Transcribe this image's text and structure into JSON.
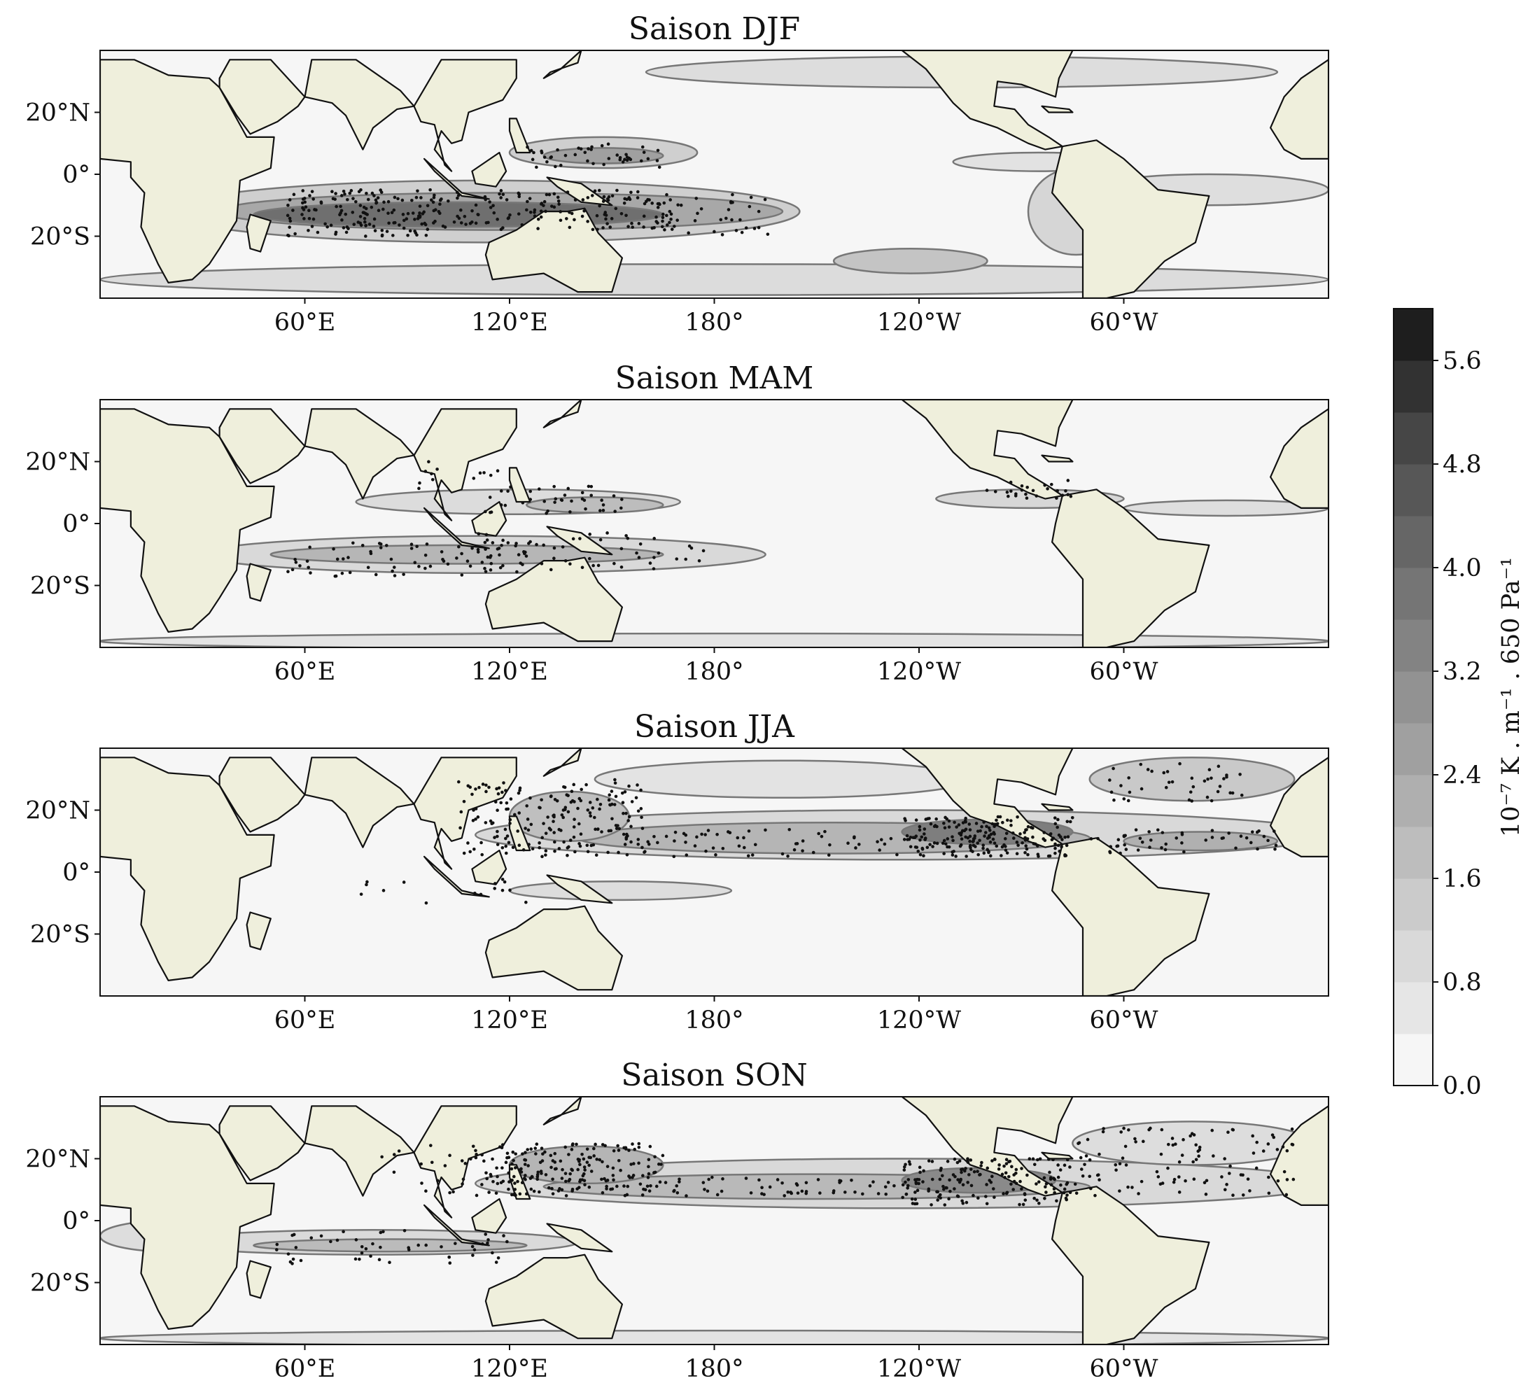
{
  "panels": [
    {
      "title": "Saison DJF"
    },
    {
      "title": "Saison MAM"
    },
    {
      "title": "Saison JJA"
    },
    {
      "title": "Saison SON"
    }
  ],
  "axes": {
    "lat_ticks": [
      "20°N",
      "0°",
      "20°S"
    ],
    "lon_ticks": [
      "60°E",
      "120°E",
      "180°",
      "120°W",
      "60°W"
    ]
  },
  "colorbar": {
    "label": "10⁻⁷ K . m⁻¹ . 650 Pa⁻¹",
    "ticks": [
      "0.0",
      "0.8",
      "1.6",
      "2.4",
      "3.2",
      "4.0",
      "4.8",
      "5.6"
    ],
    "levels": 15,
    "min": 0.0,
    "max": 6.0
  },
  "colors": {
    "land": "#efefdc",
    "background": "#f6f6f6",
    "contour_line": "#777777",
    "dots": "#111111"
  }
}
